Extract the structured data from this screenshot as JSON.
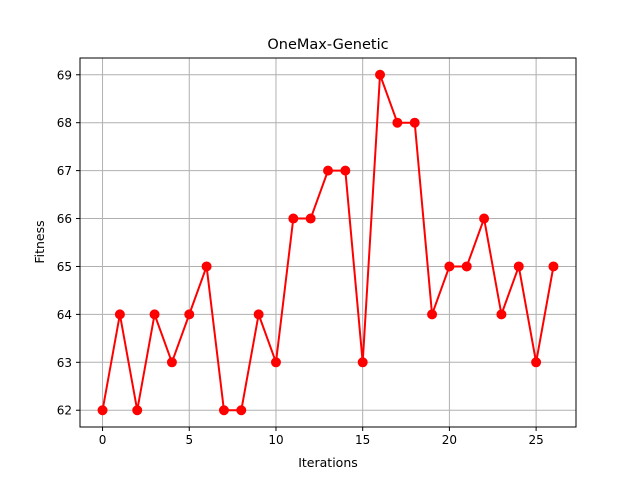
{
  "chart_data": {
    "type": "line",
    "title": "OneMax-Genetic",
    "xlabel": "Iterations",
    "ylabel": "Fitness",
    "xlim": [
      -1.3,
      27.3
    ],
    "ylim": [
      61.65,
      69.35
    ],
    "xticks": [
      0,
      5,
      10,
      15,
      20,
      25
    ],
    "yticks": [
      62,
      63,
      64,
      65,
      66,
      67,
      68,
      69
    ],
    "grid": true,
    "series": [
      {
        "color": "#ff0000",
        "marker": "circle",
        "x": [
          0,
          1,
          2,
          3,
          4,
          5,
          6,
          7,
          8,
          9,
          10,
          11,
          12,
          13,
          14,
          15,
          16,
          17,
          18,
          19,
          20,
          21,
          22,
          23,
          24,
          25,
          26
        ],
        "y": [
          62,
          64,
          62,
          64,
          63,
          64,
          65,
          62,
          62,
          64,
          63,
          66,
          66,
          67,
          67,
          63,
          69,
          68,
          68,
          64,
          65,
          65,
          66,
          64,
          65,
          63,
          65
        ]
      }
    ]
  }
}
